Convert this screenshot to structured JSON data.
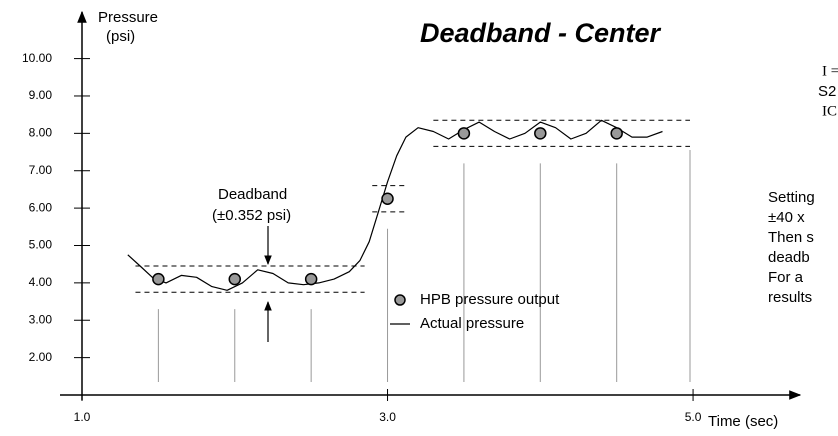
{
  "chart_data": {
    "type": "scatter",
    "title": "Deadband  - Center",
    "y_label": [
      "Pressure",
      "(psi)"
    ],
    "x_label": "Time (sec)",
    "deadband_label": [
      "Deadband",
      "(±0.352 psi)"
    ],
    "notes": [
      "I =",
      "S2",
      "IC",
      "Setting",
      "±40 x",
      "Then s",
      "deadb",
      "For a",
      "results"
    ],
    "xlim": [
      1,
      5.7
    ],
    "ylim": [
      1,
      11.3
    ],
    "xticks": [
      {
        "value": 1,
        "label": "1.0"
      },
      {
        "value": 3,
        "label": "3.0"
      },
      {
        "value": 5,
        "label": "5.0"
      }
    ],
    "yticks": [
      {
        "value": 2,
        "label": "2.00"
      },
      {
        "value": 3,
        "label": "3.00"
      },
      {
        "value": 4,
        "label": "4.00"
      },
      {
        "value": 5,
        "label": "5.00"
      },
      {
        "value": 6,
        "label": "6.00"
      },
      {
        "value": 7,
        "label": "7.00"
      },
      {
        "value": 8,
        "label": "8.00"
      },
      {
        "value": 9,
        "label": "9.00"
      },
      {
        "value": 10,
        "label": "10.00"
      }
    ],
    "legend": "center",
    "series": [
      {
        "name": "HPB pressure output",
        "color": "#999999",
        "x": [
          1.5,
          2.0,
          2.5,
          3.0,
          3.5,
          4.0,
          4.5
        ],
        "values": [
          4.1,
          4.1,
          4.1,
          6.25,
          8.0,
          8.0,
          8.0
        ]
      },
      {
        "name": "Actual pressure",
        "color": "#000000",
        "x": [
          1.3,
          1.38,
          1.46,
          1.55,
          1.65,
          1.75,
          1.85,
          1.95,
          2.05,
          2.15,
          2.25,
          2.35,
          2.45,
          2.55,
          2.65,
          2.75,
          2.82,
          2.88,
          2.94,
          3.0,
          3.06,
          3.12,
          3.2,
          3.3,
          3.4,
          3.5,
          3.6,
          3.7,
          3.8,
          3.9,
          4.0,
          4.1,
          4.2,
          4.3,
          4.4,
          4.5,
          4.6,
          4.7,
          4.8
        ],
        "values": [
          4.75,
          4.45,
          4.15,
          4.0,
          4.2,
          4.15,
          3.9,
          3.8,
          4.0,
          4.35,
          4.25,
          4.0,
          3.95,
          4.0,
          4.1,
          4.3,
          4.6,
          5.1,
          5.9,
          6.7,
          7.4,
          7.9,
          8.15,
          8.05,
          7.85,
          8.1,
          8.3,
          8.05,
          7.85,
          8.0,
          8.3,
          8.15,
          7.85,
          8.0,
          8.35,
          8.15,
          7.9,
          7.9,
          8.05
        ]
      }
    ],
    "bands": [
      {
        "x": [
          1.35,
          2.85
        ],
        "upper": 4.45,
        "lower": 3.75
      },
      {
        "x": [
          2.9,
          3.12
        ],
        "upper": 6.6,
        "lower": 5.9
      },
      {
        "x": [
          3.3,
          4.98
        ],
        "upper": 8.35,
        "lower": 7.65
      }
    ]
  }
}
